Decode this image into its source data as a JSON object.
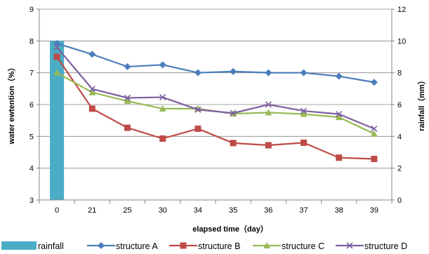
{
  "chart_data": {
    "type": "line",
    "title": "",
    "xlabel": "elapsed time（day）",
    "ylabel": "water ewtention（%）",
    "y2label": "rainfall（mm）",
    "categories": [
      "0",
      "21",
      "25",
      "30",
      "34",
      "35",
      "36",
      "37",
      "38",
      "39"
    ],
    "ylim": [
      3,
      9
    ],
    "yticks": [
      "3",
      "4",
      "5",
      "6",
      "7",
      "8",
      "9"
    ],
    "y2lim": [
      0,
      12
    ],
    "y2ticks": [
      "0",
      "2",
      "4",
      "6",
      "8",
      "10",
      "12"
    ],
    "grid": true,
    "legend_position": "bottom",
    "bar_series": {
      "name": "rainfall",
      "axis": "right",
      "color": "#4BACC6",
      "values": [
        10,
        0,
        0,
        0,
        0,
        0,
        0,
        0,
        0,
        0
      ]
    },
    "series": [
      {
        "name": "structure A",
        "color": "#4A7EBB",
        "marker": "diamond",
        "values": [
          7.92,
          7.58,
          7.19,
          7.25,
          7.0,
          7.04,
          7.0,
          7.0,
          6.89,
          6.7
        ]
      },
      {
        "name": "structure B",
        "color": "#BE4B48",
        "marker": "square",
        "values": [
          7.5,
          5.87,
          5.27,
          4.93,
          5.24,
          4.79,
          4.72,
          4.8,
          4.33,
          4.29
        ]
      },
      {
        "name": "structure C",
        "color": "#98B954",
        "marker": "triangle",
        "values": [
          7.0,
          6.38,
          6.11,
          5.87,
          5.87,
          5.71,
          5.75,
          5.7,
          5.6,
          5.08
        ]
      },
      {
        "name": "structure D",
        "color": "#7D60A0",
        "marker": "x",
        "values": [
          7.8,
          6.49,
          6.21,
          6.23,
          5.84,
          5.73,
          6.0,
          5.8,
          5.7,
          5.24
        ]
      }
    ]
  }
}
